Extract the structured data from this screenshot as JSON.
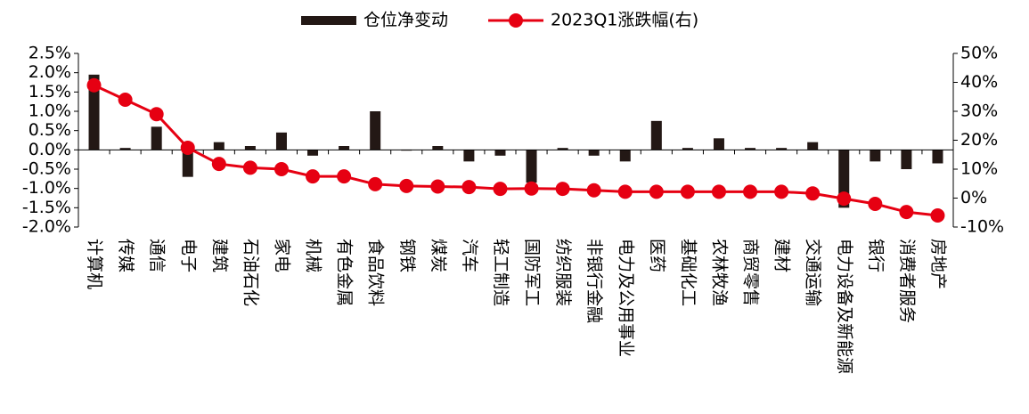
{
  "chart_data": {
    "type": "bar-line",
    "categories": [
      "计算机",
      "传媒",
      "通信",
      "电子",
      "建筑",
      "石油石化",
      "家电",
      "机械",
      "有色金属",
      "食品饮料",
      "钢铁",
      "煤炭",
      "汽车",
      "轻工制造",
      "国防军工",
      "纺织服装",
      "非银行金融",
      "电力及公用事业",
      "医药",
      "基础化工",
      "农林牧渔",
      "商贸零售",
      "建材",
      "交通运输",
      "电力设备及新能源",
      "银行",
      "消费者服务",
      "房地产"
    ],
    "series": [
      {
        "name": "仓位净变动",
        "type": "bar",
        "color": "#231815",
        "values": [
          1.95,
          0.05,
          0.6,
          -0.7,
          0.2,
          0.1,
          0.45,
          -0.15,
          0.1,
          1.0,
          -0.02,
          0.1,
          -0.3,
          -0.15,
          -0.85,
          0.05,
          -0.15,
          -0.3,
          0.75,
          0.05,
          0.3,
          0.05,
          0.05,
          0.2,
          -1.5,
          -0.3,
          -0.5,
          -0.35
        ]
      },
      {
        "name": "2023Q1涨跌幅(右)",
        "type": "line",
        "axis": "y2",
        "color": "#e60012",
        "values": [
          39,
          34,
          29,
          17.4,
          11.8,
          10.5,
          10,
          7.5,
          7.5,
          4.8,
          4.2,
          4,
          3.8,
          3.2,
          3.3,
          3.2,
          2.7,
          2.2,
          2.2,
          2.2,
          2.2,
          2.2,
          2.2,
          1.6,
          -0.2,
          -2,
          -4.8,
          -6
        ]
      }
    ],
    "ylim": [
      -2.0,
      2.5
    ],
    "yticks": [
      {
        "value": 2.5,
        "label": "2.5%"
      },
      {
        "value": 2.0,
        "label": "2.0%"
      },
      {
        "value": 1.5,
        "label": "1.5%"
      },
      {
        "value": 1.0,
        "label": "1.0%"
      },
      {
        "value": 0.5,
        "label": "0.5%"
      },
      {
        "value": 0.0,
        "label": "0.0%"
      },
      {
        "value": -0.5,
        "label": "-0.5%"
      },
      {
        "value": -1.0,
        "label": "-1.0%"
      },
      {
        "value": -1.5,
        "label": "-1.5%"
      },
      {
        "value": -2.0,
        "label": "-2.0%"
      }
    ],
    "y2lim": [
      -10,
      50
    ],
    "y2ticks": [
      {
        "value": 50,
        "label": "50%"
      },
      {
        "value": 40,
        "label": "40%"
      },
      {
        "value": 30,
        "label": "30%"
      },
      {
        "value": 20,
        "label": "20%"
      },
      {
        "value": 10,
        "label": "10%"
      },
      {
        "value": 0,
        "label": "0%"
      },
      {
        "value": -10,
        "label": "-10%"
      }
    ],
    "legend": "top"
  }
}
